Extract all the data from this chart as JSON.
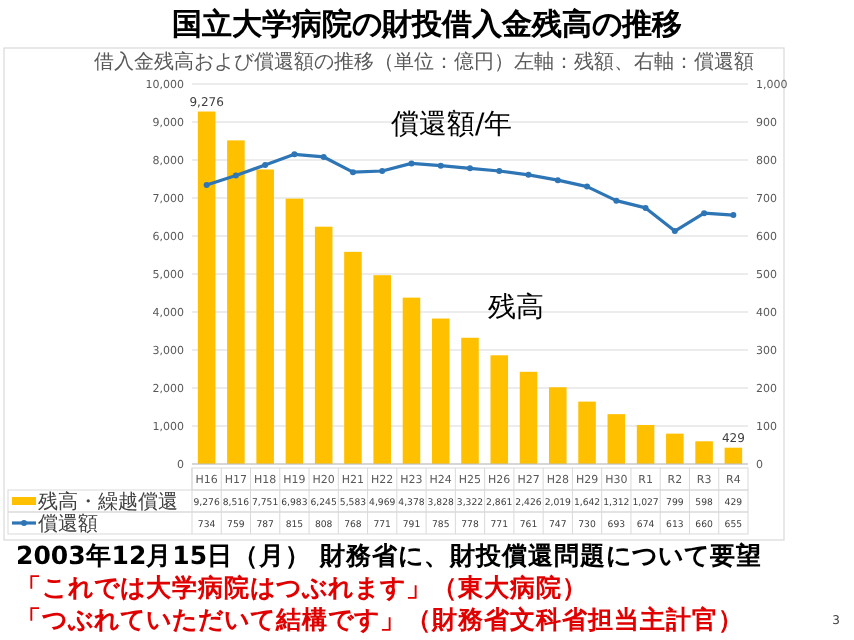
{
  "chart_data": {
    "type": "bar",
    "title": "国立大学病院の財投借入金残高の推移",
    "subtitle": "借入金残高および償還額の推移（単位：億円）左軸：残額、右軸：償還額",
    "categories": [
      "H16",
      "H17",
      "H18",
      "H19",
      "H20",
      "H21",
      "H22",
      "H23",
      "H24",
      "H25",
      "H26",
      "H27",
      "H28",
      "H29",
      "H30",
      "R1",
      "R2",
      "R3",
      "R4"
    ],
    "series": [
      {
        "name": "残高・繰越償還",
        "color": "#ffc000",
        "values": [
          9276,
          8516,
          7751,
          6983,
          6245,
          5583,
          4969,
          4378,
          3828,
          3322,
          2861,
          2426,
          2019,
          1642,
          1312,
          1027,
          799,
          598,
          429
        ],
        "value_labels": [
          "9,276",
          "8,516",
          "7,751",
          "6,983",
          "6,245",
          "5,583",
          "4,969",
          "4,378",
          "3,828",
          "3,322",
          "2,861",
          "2,426",
          "2,019",
          "1,642",
          "1,312",
          "1,027",
          "799",
          "598",
          "429"
        ]
      },
      {
        "name": "償還額",
        "type": "line",
        "axis": "y2",
        "color": "#2e75b6",
        "values": [
          734,
          759,
          787,
          815,
          808,
          768,
          771,
          791,
          785,
          778,
          771,
          761,
          747,
          730,
          693,
          674,
          613,
          660,
          655
        ],
        "value_labels": [
          "734",
          "759",
          "787",
          "815",
          "808",
          "768",
          "771",
          "791",
          "785",
          "778",
          "771",
          "761",
          "747",
          "730",
          "693",
          "674",
          "613",
          "660",
          "655"
        ]
      }
    ],
    "ylim": [
      0,
      10000
    ],
    "yticks": [
      0,
      {
        "value": 1000,
        "label": "1,000"
      },
      {
        "value": 2000,
        "label": "2,000"
      },
      {
        "value": 3000,
        "label": "3,000"
      },
      {
        "value": 4000,
        "label": "4,000"
      },
      {
        "value": 5000,
        "label": "5,000"
      },
      {
        "value": 6000,
        "label": "6,000"
      },
      {
        "value": 7000,
        "label": "7,000"
      },
      {
        "value": 8000,
        "label": "8,000"
      },
      {
        "value": 9000,
        "label": "9,000"
      },
      {
        "value": 10000,
        "label": "10,000"
      }
    ],
    "y2lim": [
      0,
      1000
    ],
    "y2ticks": [
      0,
      100,
      200,
      300,
      400,
      500,
      600,
      700,
      800,
      900,
      {
        "value": 1000,
        "label": "1,000"
      }
    ],
    "grid": "y",
    "legend": "bottom",
    "marker": "circle",
    "line_style": "solid",
    "annotations": [
      "償還額/年",
      "残高",
      "2003年12月15日（月） 財務省に、財投償還問題について要望",
      "「これでは大学病院はつぶれます」（東大病院）",
      "「つぶれていただいて結構です」（財務省文科省担当主計官）",
      "3",
      {
        "text": "9,276",
        "x": "H16",
        "y": 9276
      },
      {
        "text": "429",
        "x": "R4",
        "y": 429
      }
    ]
  }
}
